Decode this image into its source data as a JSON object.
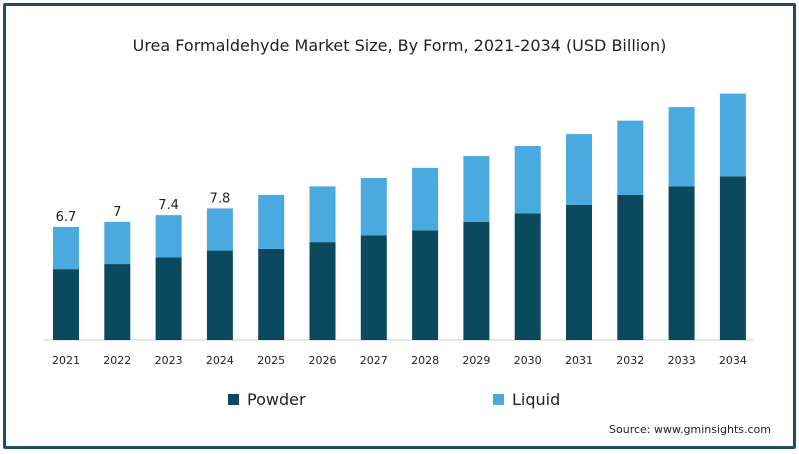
{
  "chart_data": {
    "type": "bar",
    "stacked": true,
    "title": "Urea Formaldehyde Market Size, By Form, 2021-2034 (USD Billion)",
    "categories": [
      "2021",
      "2022",
      "2023",
      "2024",
      "2025",
      "2026",
      "2027",
      "2028",
      "2029",
      "2030",
      "2031",
      "2032",
      "2033",
      "2034"
    ],
    "series": [
      {
        "name": "Powder",
        "color": "#0b4a5e",
        "values": [
          4.2,
          4.5,
          4.9,
          5.3,
          5.4,
          5.8,
          6.2,
          6.5,
          7.0,
          7.5,
          8.0,
          8.6,
          9.1,
          9.7
        ]
      },
      {
        "name": "Liquid",
        "color": "#4aa9df",
        "values": [
          2.5,
          2.5,
          2.5,
          2.5,
          3.2,
          3.3,
          3.4,
          3.7,
          3.9,
          4.0,
          4.2,
          4.4,
          4.7,
          4.9
        ]
      }
    ],
    "data_labels": [
      "6.7",
      "7",
      "7.4",
      "7.8",
      "",
      "",
      "",
      "",
      "",
      "",
      "",
      "",
      "",
      ""
    ],
    "ylim": [
      0,
      16
    ],
    "grid": false,
    "legend_position": "bottom"
  },
  "source": "Source: www.gminsights.com"
}
